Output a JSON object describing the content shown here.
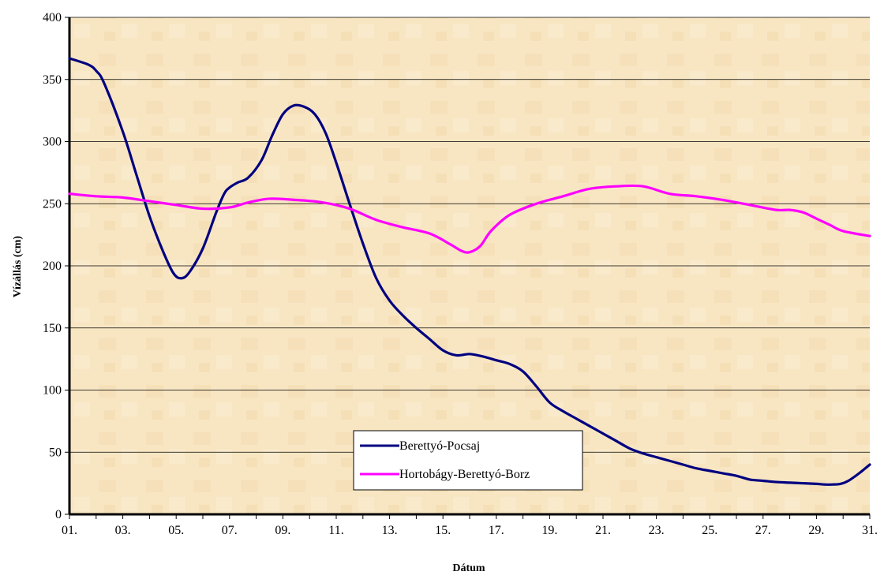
{
  "chart_data": {
    "type": "line",
    "xlabel": "Dátum",
    "ylabel": "Vízállás (cm)",
    "ylim": [
      0,
      400
    ],
    "yticks": [
      "0",
      "50",
      "100",
      "150",
      "200",
      "250",
      "300",
      "350",
      "400"
    ],
    "xticks": [
      "01.",
      "03.",
      "05.",
      "07.",
      "09.",
      "11.",
      "13.",
      "15.",
      "17.",
      "19.",
      "21.",
      "23.",
      "25.",
      "27.",
      "29.",
      "31."
    ],
    "xlim": [
      1,
      31
    ],
    "grid": "horizontal",
    "legend_position": "bottom-center",
    "series": [
      {
        "name": "Berettyó-Pocsaj",
        "color": "#000080",
        "x": [
          1,
          1.7,
          2,
          2.3,
          3,
          3.5,
          4,
          4.5,
          4.9,
          5.2,
          5.5,
          6,
          6.5,
          6.8,
          7,
          7.3,
          7.7,
          8.2,
          8.6,
          9,
          9.4,
          9.8,
          10.2,
          10.6,
          11,
          11.5,
          12,
          12.5,
          13,
          13.5,
          14,
          14.5,
          15,
          15.5,
          16,
          16.5,
          17,
          17.5,
          18,
          18.5,
          19,
          19.5,
          20,
          20.5,
          21,
          21.5,
          22,
          22.5,
          23,
          23.5,
          24,
          24.5,
          25,
          25.5,
          26,
          26.5,
          27,
          27.5,
          28,
          28.5,
          29,
          29.3,
          29.6,
          29.9,
          30.2,
          30.6,
          31
        ],
        "y": [
          367,
          362,
          357,
          347,
          308,
          274,
          240,
          212,
          194,
          190,
          195,
          214,
          243,
          258,
          263,
          267,
          271,
          285,
          305,
          322,
          329,
          328,
          322,
          307,
          283,
          250,
          218,
          190,
          172,
          160,
          150,
          141,
          132,
          128,
          129,
          127,
          124,
          121,
          115,
          103,
          90,
          83,
          77,
          71,
          65,
          59,
          53,
          49,
          46,
          43,
          40,
          37,
          35,
          33,
          31,
          28,
          27,
          26,
          25.5,
          25,
          24.5,
          24,
          24,
          24.5,
          27,
          33,
          40
        ]
      },
      {
        "name": "Hortobágy-Berettyó-Borz",
        "color": "#ff00ff",
        "x": [
          1,
          2,
          3,
          4,
          5,
          6,
          7,
          7.7,
          8.5,
          9.5,
          10.5,
          11.5,
          12.5,
          13.5,
          14.5,
          15.3,
          15.7,
          16,
          16.4,
          16.8,
          17.5,
          18.5,
          19.5,
          20.5,
          21.5,
          22.5,
          23.5,
          24.5,
          25.5,
          26.5,
          27.5,
          28,
          28.5,
          29,
          29.5,
          30,
          31
        ],
        "y": [
          258,
          256,
          255,
          252,
          249,
          246,
          247,
          251,
          254,
          253,
          251,
          246,
          237,
          231,
          226,
          217,
          212,
          211,
          216,
          228,
          241,
          250,
          256,
          262,
          264,
          264,
          258,
          256,
          253,
          249,
          245,
          245,
          243,
          238,
          233,
          228,
          224
        ]
      }
    ]
  }
}
